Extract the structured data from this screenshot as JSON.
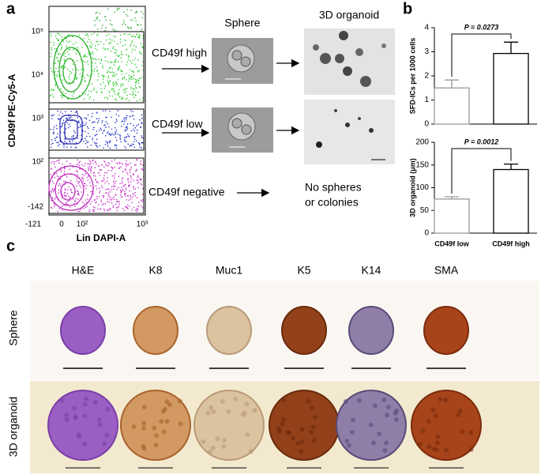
{
  "panel_labels": [
    "a",
    "b",
    "c"
  ],
  "panel_a": {
    "y_axis_label": "CD49f PE-Cy5-A",
    "x_axis_label": "Lin DAPI-A",
    "y_tick_labels": [
      "10⁵",
      "10⁴",
      "10³",
      "10²",
      "-142"
    ],
    "x_tick_labels": [
      "-121",
      "0",
      "10²",
      "10³"
    ],
    "gates": [
      "CD49f high",
      "CD49f low",
      "CD49f negative"
    ],
    "column_titles": [
      "Sphere",
      "3D organoid"
    ],
    "outcome": [
      "No spheres",
      "or colonies"
    ]
  },
  "chart_data": [
    {
      "type": "bar",
      "ylabel": "SFD-ICs per 1000 cells",
      "categories": [
        null,
        null
      ],
      "values": [
        1.5,
        2.93
      ],
      "errors": [
        0.33,
        0.47
      ],
      "edge_colors": [
        "#999999",
        "#000000"
      ],
      "ylim": [
        0,
        4
      ],
      "yticks": [
        0,
        1,
        2,
        3,
        4
      ],
      "annotation": "P = 0.0273"
    },
    {
      "type": "bar",
      "ylabel": "3D organoid (μm)",
      "categories": [
        "CD49f low",
        "CD49f high"
      ],
      "values": [
        75,
        140
      ],
      "errors": [
        5,
        12
      ],
      "edge_colors": [
        "#999999",
        "#000000"
      ],
      "ylim": [
        0,
        200
      ],
      "yticks": [
        0,
        50,
        100,
        150,
        200
      ],
      "annotation": "P = 0.0012"
    }
  ],
  "panel_c": {
    "stains": [
      "H&E",
      "K8",
      "Muc1",
      "K5",
      "K14",
      "SMA"
    ],
    "rows": [
      "Sphere",
      "3D organoid"
    ]
  }
}
